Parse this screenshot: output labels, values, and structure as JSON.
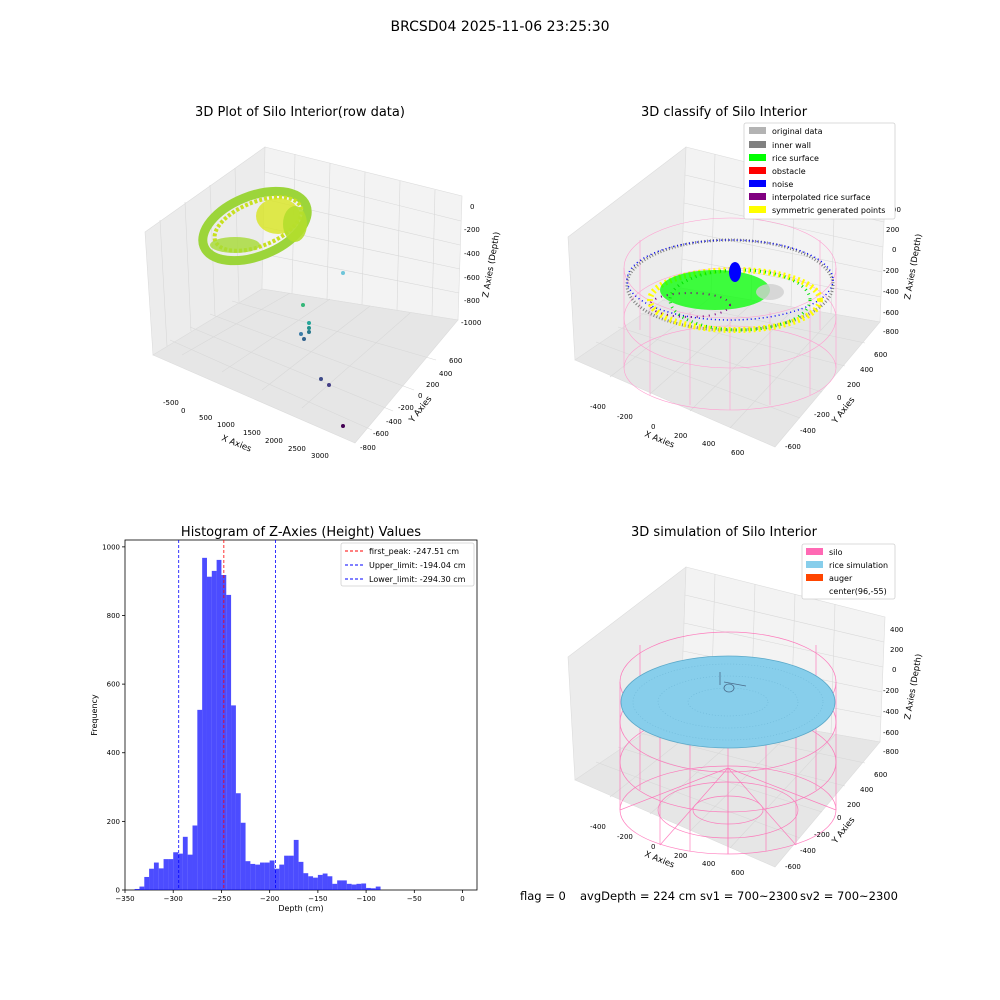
{
  "figure": {
    "suptitle": "BRCSD04 2025-11-06 23:25:30",
    "footer": {
      "flag": "flag = 0",
      "avg_depth": "avgDepth = 224 cm",
      "sv1": "sv1 = 700~2300",
      "sv2": "sv2 = 700~2300"
    }
  },
  "panels": {
    "raw": {
      "title": "3D Plot of Silo Interior(row data)",
      "xlabel": "X Axies",
      "ylabel": "Y Axies",
      "zlabel": "Z Axies (Depth)",
      "xticks": [
        "-500",
        "0",
        "500",
        "1000",
        "1500",
        "2000",
        "2500",
        "3000"
      ],
      "yticks": [
        "600",
        "400",
        "200",
        "0",
        "-200",
        "-400",
        "-600",
        "-800"
      ],
      "zticks": [
        "0",
        "-200",
        "-400",
        "-600",
        "-800",
        "-1000"
      ]
    },
    "classify": {
      "title": "3D classify of Silo Interior",
      "xlabel": "X Axies",
      "ylabel": "Y Axies",
      "zlabel": "Z Axies (Depth)",
      "xticks": [
        "-400",
        "-200",
        "0",
        "200",
        "400",
        "600"
      ],
      "yticks": [
        "600",
        "400",
        "200",
        "0",
        "-200",
        "-400",
        "-600"
      ],
      "zticks": [
        "400",
        "200",
        "0",
        "-200",
        "-400",
        "-600",
        "-800"
      ],
      "zticks_partial": "00",
      "legend": [
        {
          "label": "original data",
          "color": "#b3b3b3"
        },
        {
          "label": "inner wall",
          "color": "#808080"
        },
        {
          "label": "rice surface",
          "color": "#00ff00"
        },
        {
          "label": "obstacle",
          "color": "#ff0000"
        },
        {
          "label": "noise",
          "color": "#0000ff"
        },
        {
          "label": "interpolated rice surface",
          "color": "#800080"
        },
        {
          "label": "symmetric generated points",
          "color": "#ffff00"
        }
      ]
    },
    "simulation": {
      "title": "3D simulation of Silo Interior",
      "xlabel": "X Axies",
      "ylabel": "Y Axies",
      "zlabel": "Z Axies (Depth)",
      "xticks": [
        "-400",
        "-200",
        "0",
        "200",
        "400",
        "600"
      ],
      "yticks": [
        "600",
        "400",
        "200",
        "0",
        "-200",
        "-400",
        "-600"
      ],
      "zticks": [
        "400",
        "200",
        "0",
        "-200",
        "-400",
        "-600",
        "-800"
      ],
      "legend": [
        {
          "label": "silo",
          "color": "#ff69b4"
        },
        {
          "label": "rice simulation",
          "color": "#87ceeb"
        },
        {
          "label": "auger",
          "color": "#ff4500"
        },
        {
          "label": "center(96,-55)",
          "color": ""
        }
      ]
    }
  },
  "chart_data": {
    "type": "bar",
    "title": "Histogram of Z-Axies (Height) Values",
    "xlabel": "Depth (cm)",
    "ylabel": "Frequency",
    "xlim": [
      -350,
      15
    ],
    "ylim": [
      0,
      1020
    ],
    "xticks": [
      -350,
      -300,
      -250,
      -200,
      -150,
      -100,
      -50,
      0
    ],
    "yticks": [
      0,
      200,
      400,
      600,
      800,
      1000
    ],
    "bin_width": 5.0,
    "bin_start": -340,
    "values": [
      3,
      10,
      38,
      62,
      80,
      63,
      90,
      90,
      110,
      106,
      155,
      103,
      188,
      525,
      968,
      913,
      930,
      962,
      918,
      860,
      538,
      282,
      196,
      84,
      76,
      74,
      80,
      80,
      86,
      62,
      74,
      100,
      100,
      146,
      82,
      49,
      40,
      36,
      44,
      48,
      40,
      18,
      28,
      28,
      18,
      16,
      18,
      19,
      6,
      5,
      10
    ],
    "bar_color": "#0000ff",
    "bar_alpha": 0.7,
    "lines": [
      {
        "label": "first_peak: -247.51 cm",
        "x": -247.51,
        "color": "#ff0000"
      },
      {
        "label": "Upper_limit: -194.04 cm",
        "x": -194.04,
        "color": "#0000ff"
      },
      {
        "label": "Lower_limit: -294.30 cm",
        "x": -294.3,
        "color": "#0000ff"
      }
    ],
    "legend_position": "top-right"
  }
}
